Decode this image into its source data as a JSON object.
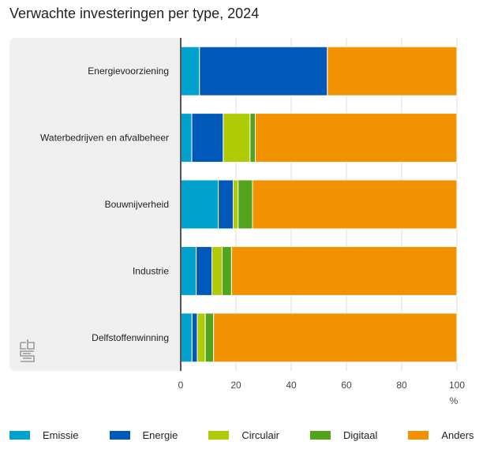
{
  "chart_data": {
    "type": "bar",
    "orientation": "horizontal",
    "stacked": true,
    "title": "Verwachte investeringen per type, 2024",
    "xlabel": "%",
    "ylabel": "",
    "xlim": [
      0,
      100
    ],
    "xticks": [
      0,
      20,
      40,
      60,
      80,
      100
    ],
    "grid": true,
    "legend_position": "bottom",
    "categories": [
      "Energievoorziening",
      "Waterbedrijven en afvalbeheer",
      "Bouwnijverheid",
      "Industrie",
      "Delfstoffenwinning"
    ],
    "series": [
      {
        "name": "Emissie",
        "color": "#00a1cd",
        "values": [
          6.8,
          4.0,
          13.6,
          5.6,
          4.1
        ]
      },
      {
        "name": "Energie",
        "color": "#0058b8",
        "values": [
          46.3,
          11.4,
          5.4,
          5.7,
          1.9
        ]
      },
      {
        "name": "Circulair",
        "color": "#afcb05",
        "values": [
          0,
          9.7,
          1.8,
          3.7,
          2.9
        ]
      },
      {
        "name": "Digitaal",
        "color": "#53a31d",
        "values": [
          0,
          1.9,
          5.2,
          3.4,
          3.0
        ]
      },
      {
        "name": "Anders",
        "color": "#f39200",
        "values": [
          46.9,
          73.0,
          74.0,
          81.6,
          88.1
        ]
      }
    ]
  },
  "logo": "cbs-logo"
}
